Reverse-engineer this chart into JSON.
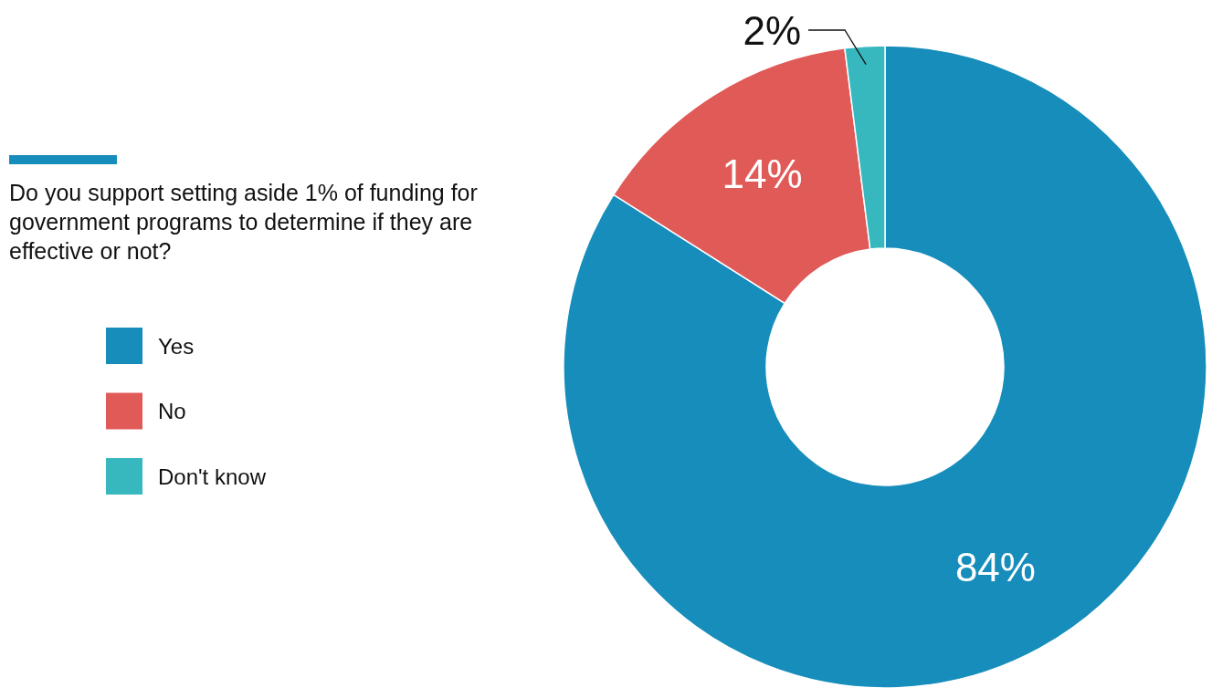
{
  "chart_data": {
    "type": "donut",
    "title": "Do you support setting aside 1% of funding for government programs to determine if they are effective or not?",
    "categories": [
      "Yes",
      "No",
      "Don't know"
    ],
    "values": [
      84,
      14,
      2
    ],
    "colors": [
      "#168dbb",
      "#e05a57",
      "#37b8bf"
    ],
    "value_labels": [
      "84%",
      "14%",
      "2%"
    ],
    "legend": "left"
  }
}
